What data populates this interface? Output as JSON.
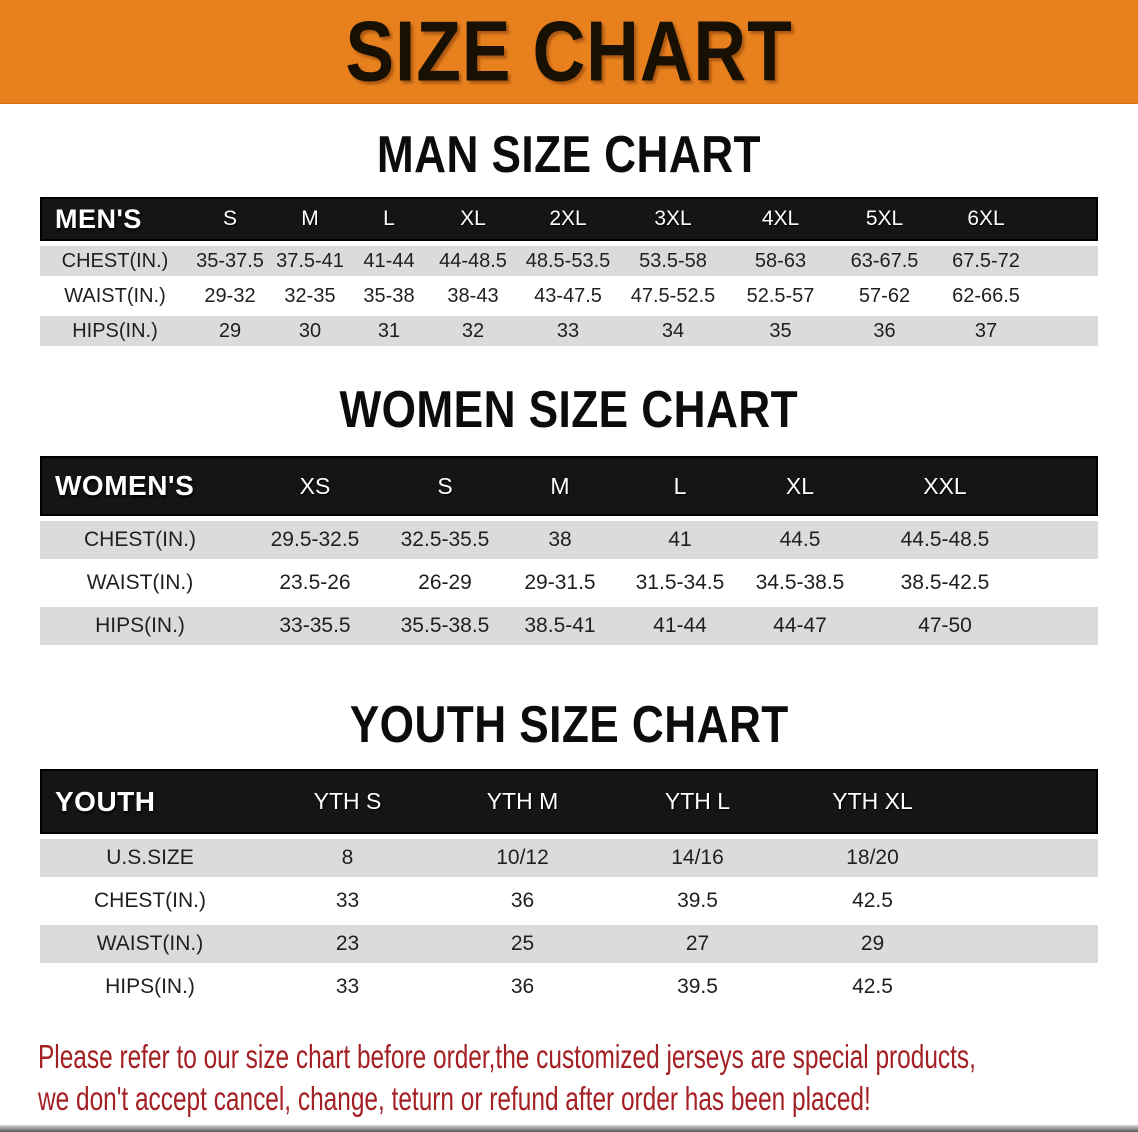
{
  "banner": {
    "title": "SIZE CHART"
  },
  "colors": {
    "banner_bg": "#E8801E",
    "header_bar": "#151515",
    "row_stripe": "#DBDBDB",
    "disclaimer_red": "#A32024"
  },
  "sections": [
    {
      "heading": "MAN SIZE CHART",
      "table": {
        "name": "MEN'S",
        "sizes": [
          "S",
          "M",
          "L",
          "XL",
          "2XL",
          "3XL",
          "4XL",
          "5XL",
          "6XL"
        ],
        "rows": [
          {
            "label": "CHEST(IN.)",
            "values": [
              "35-37.5",
              "37.5-41",
              "41-44",
              "44-48.5",
              "48.5-53.5",
              "53.5-58",
              "58-63",
              "63-67.5",
              "67.5-72"
            ]
          },
          {
            "label": "WAIST(IN.)",
            "values": [
              "29-32",
              "32-35",
              "35-38",
              "38-43",
              "43-47.5",
              "47.5-52.5",
              "52.5-57",
              "57-62",
              "62-66.5"
            ]
          },
          {
            "label": "HIPS(IN.)",
            "values": [
              "29",
              "30",
              "31",
              "32",
              "33",
              "34",
              "35",
              "36",
              "37"
            ]
          }
        ]
      }
    },
    {
      "heading": "WOMEN SIZE CHART",
      "table": {
        "name": "WOMEN'S",
        "sizes": [
          "XS",
          "S",
          "M",
          "L",
          "XL",
          "XXL"
        ],
        "rows": [
          {
            "label": "CHEST(IN.)",
            "values": [
              "29.5-32.5",
              "32.5-35.5",
              "38",
              "41",
              "44.5",
              "44.5-48.5"
            ]
          },
          {
            "label": "WAIST(IN.)",
            "values": [
              "23.5-26",
              "26-29",
              "29-31.5",
              "31.5-34.5",
              "34.5-38.5",
              "38.5-42.5"
            ]
          },
          {
            "label": "HIPS(IN.)",
            "values": [
              "33-35.5",
              "35.5-38.5",
              "38.5-41",
              "41-44",
              "44-47",
              "47-50"
            ]
          }
        ]
      }
    },
    {
      "heading": "YOUTH SIZE CHART",
      "table": {
        "name": "YOUTH",
        "sizes": [
          "YTH S",
          "YTH M",
          "YTH L",
          "YTH XL"
        ],
        "rows": [
          {
            "label": "U.S.SIZE",
            "values": [
              "8",
              "10/12",
              "14/16",
              "18/20"
            ]
          },
          {
            "label": "CHEST(IN.)",
            "values": [
              "33",
              "36",
              "39.5",
              "42.5"
            ]
          },
          {
            "label": "WAIST(IN.)",
            "values": [
              "23",
              "25",
              "27",
              "29"
            ]
          },
          {
            "label": "HIPS(IN.)",
            "values": [
              "33",
              "36",
              "39.5",
              "42.5"
            ]
          }
        ]
      }
    }
  ],
  "disclaimer": {
    "line1": "Please refer to our size chart before order,the customized jerseys are special products,",
    "line2": "we don't accept cancel, change, teturn or refund after order has been placed!"
  }
}
